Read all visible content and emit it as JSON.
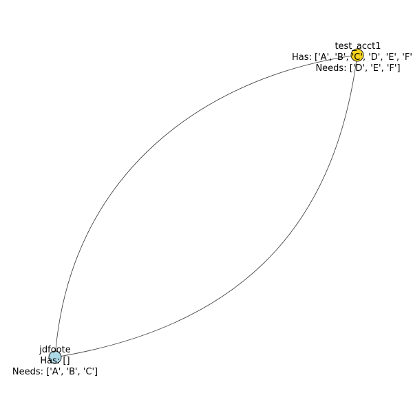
{
  "nodes": [
    {
      "id": "test_acct1",
      "name": "test_acct1",
      "has": "Has: ['A', 'B', 'C', 'D', 'E', 'F']",
      "needs": "Needs: ['D', 'E', 'F']",
      "color": "#f5d21e"
    },
    {
      "id": "jdfoote",
      "name": "jdfoote",
      "has": "Has: []",
      "needs": "Needs: ['A', 'B', 'C']",
      "color": "#add8e6"
    }
  ],
  "edges": [
    {
      "source": "test_acct1",
      "target": "jdfoote"
    },
    {
      "source": "jdfoote",
      "target": "test_acct1"
    }
  ]
}
